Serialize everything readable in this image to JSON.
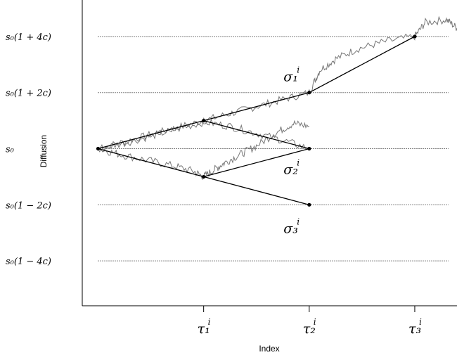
{
  "chart_data": {
    "type": "line",
    "xlabel": "Index",
    "ylabel": "Diffusion",
    "levels": [
      {
        "label": "s₀(1 + 4c)",
        "value": 4
      },
      {
        "label": "s₀(1 + 2c)",
        "value": 2
      },
      {
        "label": "s₀",
        "value": 0
      },
      {
        "label": "s₀(1 − 2c)",
        "value": -2
      },
      {
        "label": "s₀(1 − 4c)",
        "value": -4
      }
    ],
    "x_ticks": [
      {
        "label": "τ₁",
        "sup": "i",
        "value": 1
      },
      {
        "label": "τ₂",
        "sup": "i",
        "value": 2
      },
      {
        "label": "τ₃",
        "sup": "i",
        "value": 3
      }
    ],
    "xlim": [
      -0.15,
      3.4
    ],
    "ylim": [
      -5.6,
      5.3
    ],
    "tree_nodes": [
      {
        "x": 0,
        "y": 0
      },
      {
        "x": 1,
        "y": 1
      },
      {
        "x": 1,
        "y": -1
      },
      {
        "x": 2,
        "y": 2
      },
      {
        "x": 2,
        "y": 0
      },
      {
        "x": 2,
        "y": -2
      },
      {
        "x": 3,
        "y": 4
      }
    ],
    "tree_edges": [
      [
        [
          0,
          0
        ],
        [
          1,
          1
        ]
      ],
      [
        [
          0,
          0
        ],
        [
          1,
          -1
        ]
      ],
      [
        [
          1,
          1
        ],
        [
          2,
          2
        ]
      ],
      [
        [
          1,
          1
        ],
        [
          2,
          0
        ]
      ],
      [
        [
          1,
          -1
        ],
        [
          2,
          0
        ]
      ],
      [
        [
          1,
          -1
        ],
        [
          2,
          -2
        ]
      ],
      [
        [
          2,
          2
        ],
        [
          3,
          4
        ]
      ]
    ],
    "paths": [
      {
        "name": "",
        "points": [
          [
            0,
            0
          ],
          [
            0.25,
            0.25
          ],
          [
            0.5,
            0.5
          ],
          [
            0.75,
            0.75
          ],
          [
            1,
            1
          ],
          [
            1.25,
            1.25
          ],
          [
            1.5,
            1.5
          ],
          [
            1.75,
            1.75
          ],
          [
            2,
            2
          ],
          [
            2.1,
            2.8
          ],
          [
            2.25,
            3.2
          ],
          [
            2.45,
            3.55
          ],
          [
            2.7,
            3.8
          ],
          [
            3,
            4
          ],
          [
            3.1,
            4.5
          ],
          [
            3.3,
            4.6
          ],
          [
            3.4,
            4.3
          ]
        ]
      },
      {
        "name": "",
        "points": [
          [
            0,
            0
          ],
          [
            0.2,
            -0.2
          ],
          [
            0.45,
            -0.4
          ],
          [
            0.7,
            -0.6
          ],
          [
            0.9,
            -0.8
          ],
          [
            1,
            -1
          ],
          [
            1.1,
            -0.75
          ],
          [
            1.2,
            -0.5
          ],
          [
            1.35,
            -0.2
          ],
          [
            1.5,
            0.1
          ],
          [
            1.7,
            0.6
          ],
          [
            1.85,
            0.9
          ],
          [
            2,
            0.8
          ]
        ]
      },
      {
        "name": "",
        "points": [
          [
            0,
            0
          ],
          [
            0.25,
            0.2
          ],
          [
            0.5,
            0.45
          ],
          [
            0.75,
            0.7
          ],
          [
            1,
            0.95
          ],
          [
            1.25,
            0.8
          ],
          [
            1.5,
            0.55
          ],
          [
            1.75,
            0.3
          ],
          [
            2,
            0
          ]
        ]
      }
    ],
    "annotations": [
      {
        "label": "σ₁",
        "sup": "i",
        "x": 1.85,
        "y": 2.55
      },
      {
        "label": "σ₂",
        "sup": "i",
        "x": 1.85,
        "y": -0.75
      },
      {
        "label": "σ₃",
        "sup": "i",
        "x": 1.85,
        "y": -2.85
      }
    ]
  }
}
